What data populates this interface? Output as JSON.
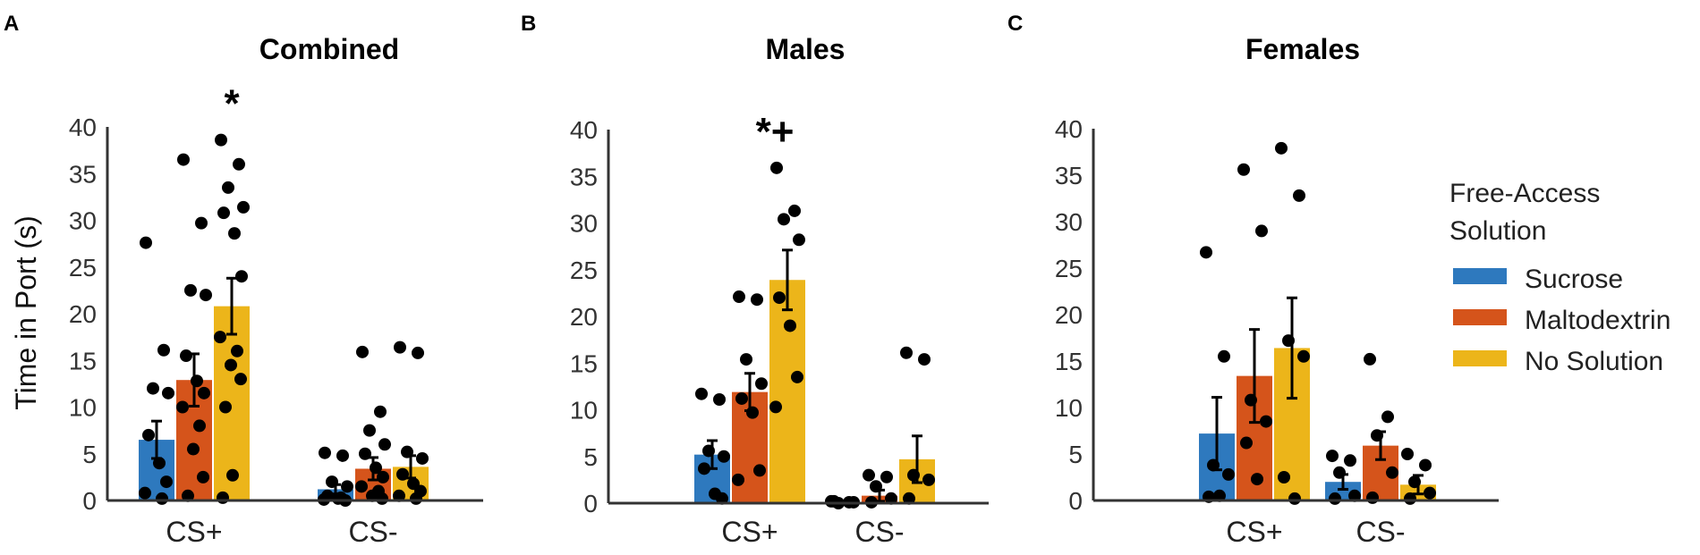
{
  "chart_data": [
    {
      "panel": "A",
      "type": "bar",
      "title": "Combined",
      "ylabel": "Time in Port (s)",
      "ylim": [
        0,
        40
      ],
      "yticks": [
        0,
        5,
        10,
        15,
        20,
        25,
        30,
        35,
        40
      ],
      "categories": [
        "CS+",
        "CS-"
      ],
      "series": [
        {
          "name": "Sucrose",
          "values": [
            6.5,
            1.2
          ],
          "sem": [
            2.0,
            0.5
          ],
          "points": [
            [
              27.6,
              16.1,
              12.0,
              11.5,
              7.0,
              4.0,
              2.0,
              0.8,
              0.2
            ],
            [
              5.1,
              4.8,
              2.0,
              1.5,
              0.5,
              0.2,
              0.0,
              0.1,
              0.3
            ]
          ]
        },
        {
          "name": "Maltodextrin",
          "values": [
            12.9,
            3.4
          ],
          "sem": [
            2.8,
            1.2
          ],
          "points": [
            [
              36.5,
              29.7,
              22.5,
              22.0,
              15.5,
              12.8,
              11.5,
              10.0,
              8.0,
              5.5,
              2.5,
              0.5
            ],
            [
              15.9,
              9.5,
              7.5,
              6.0,
              5.0,
              3.5,
              2.5,
              1.5,
              1.0,
              0.5,
              0.2
            ]
          ]
        },
        {
          "name": "No Solution",
          "values": [
            20.8,
            3.6
          ],
          "sem": [
            3.0,
            1.2
          ],
          "points": [
            [
              38.6,
              36.0,
              33.5,
              31.4,
              30.8,
              28.6,
              24.0,
              17.5,
              16.0,
              14.5,
              13.0,
              10.0,
              2.7,
              0.3
            ],
            [
              16.4,
              15.8,
              5.2,
              4.5,
              2.8,
              1.8,
              1.0,
              0.5,
              0.2
            ]
          ]
        }
      ],
      "annotations": [
        {
          "category": "CS+",
          "series": "No Solution",
          "text": "*"
        }
      ]
    },
    {
      "panel": "B",
      "type": "bar",
      "title": "Males",
      "ylabel": "",
      "ylim": [
        0,
        40
      ],
      "yticks": [
        0,
        5,
        10,
        15,
        20,
        25,
        30,
        35,
        40
      ],
      "categories": [
        "CS+",
        "CS-"
      ],
      "series": [
        {
          "name": "Sucrose",
          "values": [
            5.2,
            0.1
          ],
          "sem": [
            1.5,
            0.1
          ],
          "points": [
            [
              11.7,
              11.1,
              5.6,
              5.0,
              3.7,
              1.0,
              0.5
            ],
            [
              0.2,
              0.1,
              0.0,
              0.1,
              0.2
            ]
          ]
        },
        {
          "name": "Maltodextrin",
          "values": [
            11.9,
            0.8
          ],
          "sem": [
            2.0,
            0.6
          ],
          "points": [
            [
              22.1,
              21.8,
              15.4,
              12.8,
              11.2,
              9.7,
              3.5,
              2.5
            ],
            [
              3.0,
              2.8,
              1.8,
              0.5,
              0.1
            ]
          ]
        },
        {
          "name": "No Solution",
          "values": [
            23.9,
            4.7
          ],
          "sem": [
            3.2,
            2.5
          ],
          "points": [
            [
              35.9,
              31.3,
              30.4,
              28.2,
              22.0,
              19.0,
              13.5,
              10.3
            ],
            [
              16.1,
              15.4,
              3.0,
              2.5,
              0.5
            ]
          ]
        }
      ],
      "annotations": [
        {
          "category": "CS+",
          "series": "No Solution",
          "text": "*+"
        }
      ]
    },
    {
      "panel": "C",
      "type": "bar",
      "title": "Females",
      "ylabel": "",
      "ylim": [
        0,
        40
      ],
      "yticks": [
        0,
        5,
        10,
        15,
        20,
        25,
        30,
        35,
        40
      ],
      "categories": [
        "CS+",
        "CS-"
      ],
      "series": [
        {
          "name": "Sucrose",
          "values": [
            7.2,
            2.0
          ],
          "sem": [
            3.9,
            0.8
          ],
          "points": [
            [
              26.7,
              15.5,
              3.8,
              2.8,
              0.4,
              0.5
            ],
            [
              4.8,
              4.3,
              3.0,
              0.5,
              0.2
            ]
          ]
        },
        {
          "name": "Maltodextrin",
          "values": [
            13.4,
            5.9
          ],
          "sem": [
            5.0,
            1.5
          ],
          "points": [
            [
              35.6,
              29.0,
              10.8,
              8.5,
              6.2,
              2.3
            ],
            [
              15.2,
              9.0,
              7.0,
              3.0,
              0.3
            ]
          ]
        },
        {
          "name": "No Solution",
          "values": [
            16.4,
            1.7
          ],
          "sem": [
            5.4,
            1.0
          ],
          "points": [
            [
              37.9,
              32.8,
              17.2,
              15.5,
              2.5,
              0.2
            ],
            [
              5.0,
              3.8,
              2.0,
              0.8,
              0.2
            ]
          ]
        }
      ]
    }
  ],
  "legend": {
    "title_line1": "Free-Access",
    "title_line2": "Solution",
    "placement": "right",
    "items": [
      {
        "label": "Sucrose",
        "color": "#2e79be"
      },
      {
        "label": "Maltodextrin",
        "color": "#d5541b"
      },
      {
        "label": "No Solution",
        "color": "#ecb51a"
      }
    ]
  },
  "colors": {
    "Sucrose": "#2e79be",
    "Maltodextrin": "#d5541b",
    "No Solution": "#ecb51a"
  }
}
